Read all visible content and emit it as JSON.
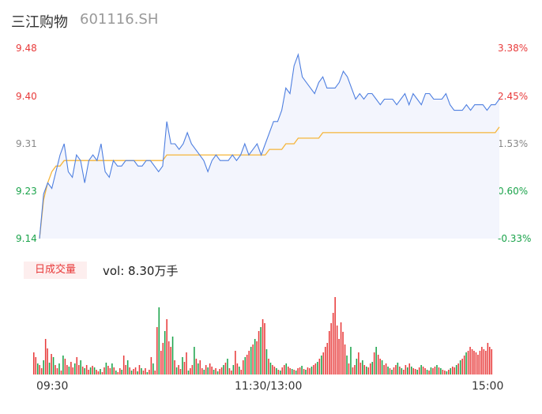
{
  "header": {
    "name": "三江购物",
    "code": "601116.SH"
  },
  "price_axis": {
    "prices": [
      "9.48",
      "9.40",
      "9.31",
      "9.23",
      "9.14"
    ],
    "percents": [
      "3.38%",
      "2.45%",
      "1.53%",
      "0.60%",
      "-0.33%"
    ]
  },
  "volume_panel": {
    "badge": "日成交量",
    "vol_text": "vol: 8.30万手"
  },
  "time_axis": {
    "start": "09:30",
    "mid": "11:30/13:00",
    "end": "15:00"
  },
  "colors": {
    "price_line": "#4e7fe0",
    "avg_line": "#f5b53a",
    "up": "#e83a3a",
    "down": "#1aa34a",
    "area": "#f3f5fd"
  },
  "chart_data": {
    "type": "line",
    "title": "",
    "xlabel": "",
    "ylabel": "",
    "ylim": [
      9.14,
      9.48
    ],
    "x_ticks": [
      "09:30",
      "11:30/13:00",
      "15:00"
    ],
    "series": [
      {
        "values": [
          9.14,
          9.22,
          9.24,
          9.23,
          9.26,
          9.29,
          9.31,
          9.26,
          9.25,
          9.29,
          9.28,
          9.24,
          9.28,
          9.29,
          9.28,
          9.31,
          9.26,
          9.25,
          9.28,
          9.27,
          9.27,
          9.28,
          9.28,
          9.28,
          9.27,
          9.27,
          9.28,
          9.28,
          9.27,
          9.26,
          9.27,
          9.35,
          9.31,
          9.31,
          9.3,
          9.31,
          9.33,
          9.31,
          9.3,
          9.29,
          9.28,
          9.26,
          9.28,
          9.29,
          9.28,
          9.28,
          9.28,
          9.29,
          9.28,
          9.29,
          9.31,
          9.29,
          9.3,
          9.31,
          9.29,
          9.31,
          9.33,
          9.35,
          9.35,
          9.37,
          9.41,
          9.4,
          9.45,
          9.47,
          9.43,
          9.42,
          9.41,
          9.4,
          9.42,
          9.43,
          9.41,
          9.41,
          9.41,
          9.42,
          9.44,
          9.43,
          9.41,
          9.39,
          9.4,
          9.39,
          9.4,
          9.4,
          9.39,
          9.38,
          9.39,
          9.39,
          9.39,
          9.38,
          9.39,
          9.4,
          9.38,
          9.4,
          9.39,
          9.38,
          9.4,
          9.4,
          9.39,
          9.39,
          9.39,
          9.4,
          9.38,
          9.37,
          9.37,
          9.37,
          9.38,
          9.37,
          9.38,
          9.38,
          9.38,
          9.37,
          9.38,
          9.38,
          9.39
        ]
      },
      {
        "values": [
          9.14,
          9.21,
          9.24,
          9.26,
          9.27,
          9.27,
          9.28,
          9.28,
          9.28,
          9.28,
          9.28,
          9.28,
          9.28,
          9.28,
          9.28,
          9.28,
          9.28,
          9.28,
          9.28,
          9.28,
          9.28,
          9.28,
          9.28,
          9.28,
          9.28,
          9.28,
          9.28,
          9.28,
          9.28,
          9.28,
          9.28,
          9.29,
          9.29,
          9.29,
          9.29,
          9.29,
          9.29,
          9.29,
          9.29,
          9.29,
          9.29,
          9.29,
          9.29,
          9.29,
          9.29,
          9.29,
          9.29,
          9.29,
          9.29,
          9.29,
          9.29,
          9.29,
          9.29,
          9.29,
          9.29,
          9.29,
          9.3,
          9.3,
          9.3,
          9.3,
          9.31,
          9.31,
          9.31,
          9.32,
          9.32,
          9.32,
          9.32,
          9.32,
          9.32,
          9.33,
          9.33,
          9.33,
          9.33,
          9.33,
          9.33,
          9.33,
          9.33,
          9.33,
          9.33,
          9.33,
          9.33,
          9.33,
          9.33,
          9.33,
          9.33,
          9.33,
          9.33,
          9.33,
          9.33,
          9.33,
          9.33,
          9.33,
          9.33,
          9.33,
          9.33,
          9.33,
          9.33,
          9.33,
          9.33,
          9.33,
          9.33,
          9.33,
          9.33,
          9.33,
          9.33,
          9.33,
          9.33,
          9.33,
          9.33,
          9.33,
          9.33,
          9.33,
          9.34
        ]
      }
    ],
    "volume": [
      28,
      22,
      14,
      12,
      8,
      18,
      45,
      33,
      15,
      26,
      22,
      12,
      8,
      14,
      5,
      24,
      20,
      12,
      10,
      16,
      9,
      14,
      22,
      12,
      18,
      10,
      8,
      12,
      6,
      9,
      11,
      9,
      6,
      4,
      7,
      3,
      9,
      15,
      11,
      8,
      14,
      9,
      5,
      3,
      8,
      6,
      24,
      12,
      18,
      9,
      5,
      7,
      9,
      4,
      12,
      8,
      5,
      8,
      3,
      6,
      22,
      14,
      5,
      60,
      85,
      30,
      40,
      55,
      70,
      42,
      35,
      48,
      18,
      9,
      12,
      7,
      22,
      16,
      28,
      5,
      8,
      12,
      35,
      20,
      14,
      18,
      8,
      6,
      12,
      9,
      14,
      10,
      6,
      8,
      4,
      7,
      9,
      12,
      15,
      20,
      8,
      5,
      12,
      30,
      14,
      10,
      6,
      18,
      22,
      25,
      30,
      35,
      38,
      45,
      42,
      55,
      60,
      70,
      65,
      32,
      20,
      15,
      12,
      10,
      8,
      6,
      5,
      9,
      12,
      14,
      10,
      8,
      7,
      6,
      5,
      8,
      9,
      11,
      7,
      6,
      9,
      8,
      10,
      12,
      14,
      16,
      20,
      24,
      28,
      35,
      40,
      55,
      65,
      78,
      98,
      62,
      45,
      66,
      54,
      38,
      24,
      14,
      35,
      9,
      12,
      20,
      28,
      15,
      18,
      12,
      10,
      9,
      14,
      16,
      28,
      35,
      25,
      20,
      18,
      12,
      14,
      10,
      8,
      6,
      9,
      12,
      15,
      10,
      8,
      6,
      12,
      9,
      14,
      10,
      8,
      7,
      6,
      9,
      12,
      10,
      8,
      6,
      5,
      9,
      8,
      10,
      12,
      9,
      8,
      6,
      5,
      4,
      6,
      8,
      10,
      9,
      12,
      14,
      18,
      20,
      24,
      28,
      30,
      35,
      32,
      30,
      28,
      25,
      30,
      35,
      32,
      30,
      40,
      35,
      32
    ],
    "volume_dir": [
      1,
      1,
      0,
      1,
      1,
      0,
      1,
      1,
      0,
      1,
      0,
      1,
      1,
      0,
      1,
      0,
      1,
      1,
      0,
      1,
      1,
      0,
      1,
      1,
      0,
      1,
      0,
      1,
      1,
      0,
      1,
      0,
      1,
      1,
      0,
      1,
      1,
      0,
      1,
      1,
      0,
      1,
      0,
      1,
      1,
      0,
      1,
      1,
      0,
      1,
      0,
      1,
      1,
      0,
      1,
      0,
      1,
      1,
      0,
      1,
      1,
      0,
      1,
      1,
      0,
      1,
      1,
      0,
      1,
      1,
      1,
      0,
      1,
      0,
      1,
      1,
      0,
      1,
      1,
      0,
      1,
      1,
      0,
      1,
      0,
      1,
      1,
      0,
      1,
      0,
      1,
      1,
      0,
      1,
      0,
      1,
      1,
      0,
      1,
      0,
      1,
      1,
      0,
      1,
      1,
      0,
      1,
      1,
      0,
      1,
      1,
      0,
      1,
      0,
      1,
      1,
      0,
      1,
      1,
      0,
      1,
      0,
      1,
      1,
      0,
      1,
      0,
      1,
      1,
      0,
      1,
      1,
      0,
      1,
      0,
      1,
      1,
      0,
      1,
      0,
      1,
      1,
      0,
      1,
      1,
      0,
      1,
      0,
      1,
      1,
      1,
      1,
      1,
      1,
      1,
      1,
      1,
      1,
      1,
      1,
      0,
      1,
      0,
      1,
      1,
      0,
      1,
      1,
      0,
      1,
      0,
      1,
      1,
      0,
      1,
      0,
      1,
      1,
      0,
      1,
      1,
      0,
      1,
      0,
      1,
      1,
      0,
      1,
      0,
      1,
      1,
      0,
      1,
      0,
      1,
      1,
      0,
      1,
      0,
      1,
      1,
      0,
      1,
      0,
      1,
      1,
      0,
      1,
      0,
      1,
      1,
      0,
      1,
      0,
      1,
      1,
      0,
      1,
      0,
      1,
      1,
      0,
      1,
      1,
      1,
      1,
      1,
      1,
      1,
      1,
      1,
      1,
      1,
      1,
      1,
      1,
      1,
      1,
      1,
      1
    ]
  }
}
